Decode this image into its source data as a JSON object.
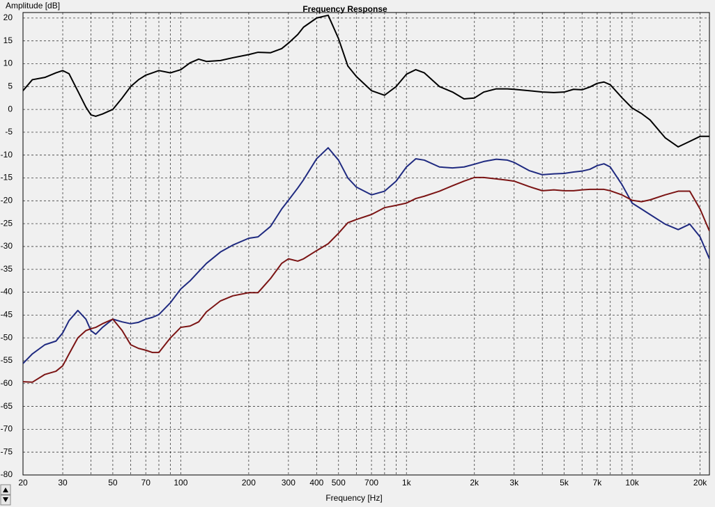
{
  "chart_data": {
    "type": "line",
    "title": "Frequency Response",
    "x_label": "Frequency [Hz]",
    "y_label": "Amplitude [dB]",
    "log_x": true,
    "grid": true,
    "xlim": [
      20,
      22000
    ],
    "ylim": [
      -80,
      21.2
    ],
    "xticks": [
      20,
      30,
      50,
      70,
      100,
      200,
      300,
      400,
      500,
      700,
      {
        "value": 1000,
        "label": "1k"
      },
      {
        "value": 2000,
        "label": "2k"
      },
      {
        "value": 3000,
        "label": "3k"
      },
      {
        "value": 5000,
        "label": "5k"
      },
      {
        "value": 7000,
        "label": "7k"
      },
      {
        "value": 10000,
        "label": "10k"
      },
      {
        "value": 20000,
        "label": "20k"
      }
    ],
    "x_minor_grid": [
      40,
      60,
      80,
      90,
      600,
      800,
      900,
      4000,
      6000,
      8000,
      9000
    ],
    "yticks": [
      20,
      15,
      10,
      5,
      0,
      -5,
      -10,
      -15,
      -20,
      -25,
      -30,
      -35,
      -40,
      -45,
      -50,
      -55,
      -60,
      -65,
      -70,
      -75,
      -80
    ],
    "x": [
      20,
      22,
      25,
      28,
      30,
      32,
      35,
      38,
      40,
      42,
      45,
      50,
      55,
      60,
      65,
      70,
      75,
      80,
      90,
      100,
      110,
      120,
      130,
      150,
      170,
      200,
      220,
      250,
      280,
      300,
      330,
      350,
      400,
      450,
      500,
      550,
      600,
      700,
      800,
      900,
      1000,
      1100,
      1200,
      1400,
      1600,
      1800,
      2000,
      2200,
      2500,
      2800,
      3000,
      3500,
      4000,
      4500,
      5000,
      5500,
      6000,
      6500,
      7000,
      7500,
      8000,
      9000,
      10000,
      11000,
      12000,
      14000,
      16000,
      18000,
      20000,
      22000
    ],
    "series": [
      {
        "color": "#000000",
        "values": [
          4.1,
          6.5,
          7,
          8,
          8.5,
          7.8,
          4,
          0.5,
          -1.2,
          -1.5,
          -1,
          0,
          2.5,
          5,
          6.5,
          7.5,
          8,
          8.5,
          8,
          8.7,
          10.2,
          11,
          10.5,
          10.7,
          11.3,
          12,
          12.5,
          12.4,
          13.3,
          14.5,
          16.4,
          18,
          20,
          20.6,
          15.5,
          9.5,
          7.2,
          4.1,
          3.1,
          5,
          7.7,
          8.7,
          8,
          5,
          3.8,
          2.3,
          2.5,
          3.8,
          4.5,
          4.5,
          4.4,
          4.1,
          3.8,
          3.7,
          3.8,
          4.4,
          4.3,
          4.9,
          5.7,
          6,
          5.4,
          2.6,
          0.3,
          -0.9,
          -2.3,
          -6.2,
          -8.2,
          -7,
          -5.9,
          -5.9
        ]
      },
      {
        "color": "#1f2a80",
        "values": [
          -55.6,
          -53.5,
          -51.5,
          -50.7,
          -48.9,
          -46.2,
          -44,
          -45.9,
          -48.4,
          -49.2,
          -47.7,
          -45.9,
          -46.5,
          -46.9,
          -46.6,
          -45.9,
          -45.5,
          -44.9,
          -42.3,
          -39.3,
          -37.5,
          -35.5,
          -33.7,
          -31.2,
          -29.7,
          -28.2,
          -27.9,
          -25.6,
          -21.8,
          -19.9,
          -17.2,
          -15.4,
          -10.8,
          -8.4,
          -11.1,
          -15,
          -17,
          -18.7,
          -17.9,
          -15.7,
          -12.6,
          -10.8,
          -11.1,
          -12.6,
          -12.8,
          -12.6,
          -12,
          -11.4,
          -10.9,
          -11.1,
          -11.6,
          -13.4,
          -14.3,
          -14.1,
          -14,
          -13.7,
          -13.5,
          -13.1,
          -12.3,
          -11.9,
          -12.6,
          -16.4,
          -20.5,
          -21.8,
          -23,
          -25.1,
          -26.3,
          -25.1,
          -27.9,
          -32.7
        ]
      },
      {
        "color": "#7b1414",
        "values": [
          -59.6,
          -59.7,
          -58,
          -57.3,
          -56.1,
          -53.5,
          -50,
          -48.4,
          -48,
          -47.7,
          -46.9,
          -45.9,
          -48.4,
          -51.5,
          -52.3,
          -52.7,
          -53.2,
          -53.2,
          -50,
          -47.7,
          -47.4,
          -46.5,
          -44.3,
          -41.9,
          -40.8,
          -40.1,
          -40.1,
          -37,
          -33.7,
          -32.7,
          -33.2,
          -32.7,
          -30.9,
          -29.4,
          -27.1,
          -24.8,
          -24.1,
          -23,
          -21.5,
          -21,
          -20.5,
          -19.5,
          -19,
          -17.9,
          -16.7,
          -15.7,
          -14.9,
          -14.9,
          -15.2,
          -15.5,
          -15.7,
          -16.9,
          -17.8,
          -17.6,
          -17.8,
          -17.8,
          -17.6,
          -17.5,
          -17.5,
          -17.5,
          -17.8,
          -18.7,
          -19.9,
          -20.2,
          -19.8,
          -18.7,
          -17.9,
          -17.9,
          -21.8,
          -26.6
        ]
      }
    ]
  }
}
